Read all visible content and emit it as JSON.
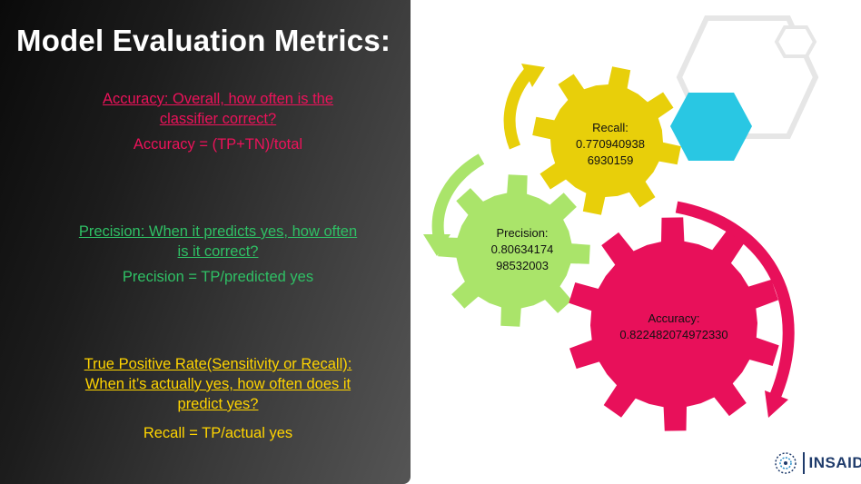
{
  "slide": {
    "title": "Model Evaluation Metrics:",
    "accuracy": {
      "question": "Accuracy: Overall, how often is the classifier correct?",
      "formula": "Accuracy = (TP+TN)/total"
    },
    "precision": {
      "question": "Precision: When it predicts yes, how often is it correct?",
      "formula": "Precision = TP/predicted yes"
    },
    "recall": {
      "question": "True Positive Rate(Sensitivity or Recall): When it’s actually yes, how often does it predict yes?",
      "formula": "Recall = TP/actual yes"
    }
  },
  "gears": {
    "recall": {
      "label": "Recall:",
      "value_line1": "0.770940938",
      "value_line2": "6930159",
      "color": "#e8cf0a"
    },
    "precision": {
      "label": "Precision:",
      "value_line1": "0.80634174",
      "value_line2": "98532003",
      "color": "#aae46a"
    },
    "accuracy": {
      "label": "Accuracy:",
      "value": "0.822482074972330",
      "color": "#e8105a"
    }
  },
  "hexagons": {
    "accent": "#29c7e3",
    "outline": "#e8e8e8"
  },
  "logo": {
    "name": "INSAID",
    "icon": "insaid-logo-icon",
    "color": "#1f3b6b"
  },
  "colors": {
    "accuracy": "#ec125a",
    "precision": "#2fc065",
    "recall": "#ffd400"
  }
}
